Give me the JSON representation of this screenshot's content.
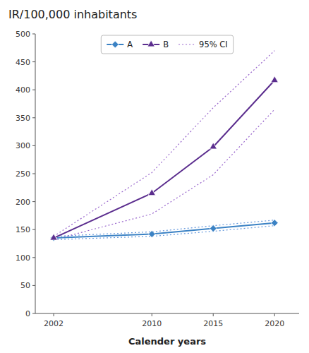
{
  "chart_data": {
    "type": "line",
    "title": "IR/100,000 inhabitants",
    "x_label": "Calender years",
    "x": [
      2002,
      2010,
      2015,
      2020
    ],
    "series": [
      {
        "name": "A",
        "color": "#3B82C4",
        "marker": "diamond",
        "line_style": "solid",
        "values": [
          135,
          142,
          152,
          162
        ]
      },
      {
        "name": "B",
        "color": "#5B2D8E",
        "marker": "triangle",
        "line_style": "solid",
        "values": [
          135,
          215,
          298,
          417
        ]
      },
      {
        "name": "95% CI",
        "color": "#6699DD",
        "line_style": "dotted",
        "values": [
          138,
          146,
          157,
          167
        ]
      },
      {
        "name": "95% CI",
        "color": "#6699DD",
        "line_style": "dotted",
        "values": [
          132,
          138,
          147,
          157
        ]
      },
      {
        "name": "95% CI",
        "color": "#9966CC",
        "line_style": "dotted",
        "values": [
          138,
          252,
          368,
          470
        ]
      },
      {
        "name": "95% CI",
        "color": "#9966CC",
        "line_style": "dotted",
        "values": [
          132,
          178,
          248,
          365
        ]
      }
    ],
    "xlim": [
      2000.5,
      2022
    ],
    "xticks": [
      2002,
      2010,
      2015,
      2020
    ],
    "ylim": [
      0,
      500
    ],
    "yticks": [
      0,
      50,
      100,
      150,
      200,
      250,
      300,
      350,
      400,
      450,
      500
    ],
    "grid": false,
    "legend": "top"
  }
}
